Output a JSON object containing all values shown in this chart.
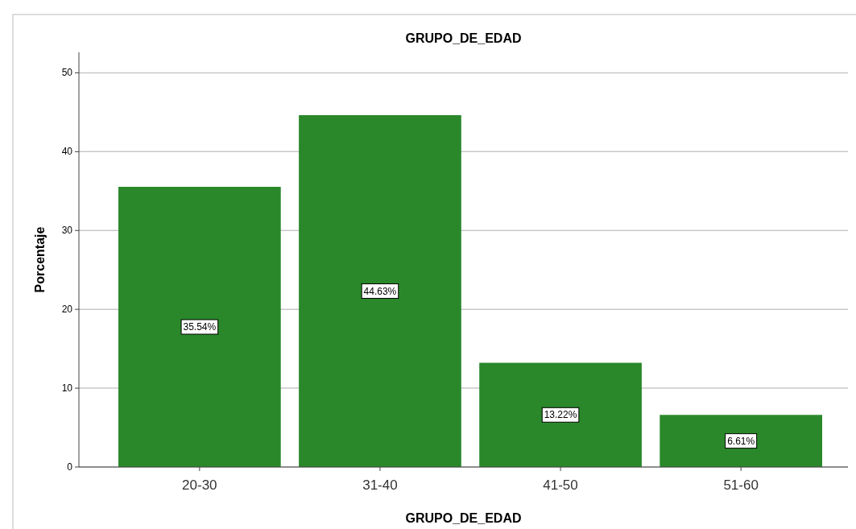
{
  "chart_data": {
    "type": "bar",
    "title": "GRUPO_DE_EDAD",
    "xlabel": "GRUPO_DE_EDAD",
    "ylabel": "Porcentaje",
    "categories": [
      "20-30",
      "31-40",
      "41-50",
      "51-60"
    ],
    "values": [
      35.54,
      44.63,
      13.22,
      6.61
    ],
    "value_labels": [
      "35.54%",
      "44.63%",
      "13.22%",
      "6.61%"
    ],
    "color": "#2a882a",
    "ylim": [
      0,
      52.6
    ],
    "yticks": [
      0,
      10,
      20,
      30,
      40,
      50
    ],
    "grid": "y"
  }
}
